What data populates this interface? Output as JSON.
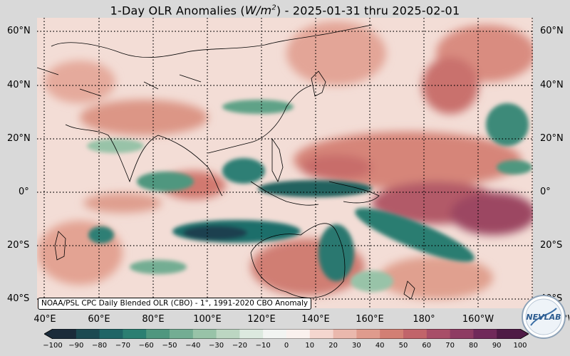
{
  "title": {
    "prefix": "1-Day OLR Anomalies (",
    "units": "W/m",
    "units_exp": "2",
    "suffix": ") - 2025-01-31 thru 2025-02-01"
  },
  "axes": {
    "lat_labels": [
      "60°N",
      "40°N",
      "20°N",
      "0°",
      "20°S",
      "40°S"
    ],
    "lon_labels": [
      "40°E",
      "60°E",
      "80°E",
      "100°E",
      "120°E",
      "140°E",
      "160°E",
      "180°",
      "160°W",
      "140°W"
    ]
  },
  "source_note": "NOAA/PSL CPC Daily Blended OLR (CBO) - 1°, 1991-2020 CBO Anomaly",
  "colorbar": {
    "ticks": [
      "−100",
      "−90",
      "−80",
      "−70",
      "−60",
      "−50",
      "−40",
      "−30",
      "−20",
      "−10",
      "0",
      "10",
      "20",
      "30",
      "40",
      "50",
      "60",
      "70",
      "80",
      "90",
      "100"
    ],
    "colors": [
      "#1b2b3a",
      "#1d4a52",
      "#1f6566",
      "#2b7f72",
      "#4f977f",
      "#73ad93",
      "#98c3a8",
      "#bcd6c2",
      "#dce9df",
      "#f2f4f2",
      "#faf1ee",
      "#f4d6cf",
      "#eab8ad",
      "#df9b8d",
      "#d27f74",
      "#c1646a",
      "#a84e68",
      "#8e3b63",
      "#70295a",
      "#4e1a45"
    ]
  },
  "logo": {
    "text": "NEVLAB"
  }
}
